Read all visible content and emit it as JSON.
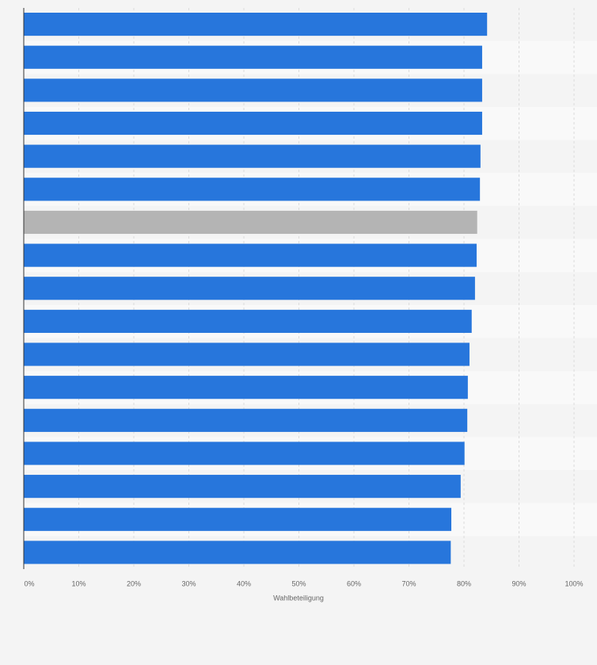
{
  "chart_data": {
    "type": "bar",
    "orientation": "horizontal",
    "xlabel": "Wahlbeteiligung",
    "categories": [
      null,
      null,
      null,
      null,
      null,
      null,
      null,
      null,
      null,
      null,
      null,
      null,
      null,
      null,
      null,
      null,
      null
    ],
    "values": [
      84.2,
      83.3,
      83.3,
      83.3,
      83.0,
      82.9,
      82.4,
      82.3,
      82.0,
      81.4,
      81.0,
      80.7,
      80.6,
      80.1,
      79.4,
      77.7,
      77.6
    ],
    "colors": [
      "#2776dc",
      "#2776dc",
      "#2776dc",
      "#2776dc",
      "#2776dc",
      "#2776dc",
      "#b4b4b4",
      "#2776dc",
      "#2776dc",
      "#2776dc",
      "#2776dc",
      "#2776dc",
      "#2776dc",
      "#2776dc",
      "#2776dc",
      "#2776dc",
      "#2776dc"
    ],
    "xlim": [
      0,
      100
    ],
    "xticks": [
      {
        "value": 0,
        "label": "0%"
      },
      {
        "value": 10,
        "label": "10%"
      },
      {
        "value": 20,
        "label": "20%"
      },
      {
        "value": 30,
        "label": "30%"
      },
      {
        "value": 40,
        "label": "40%"
      },
      {
        "value": 50,
        "label": "50%"
      },
      {
        "value": 60,
        "label": "60%"
      },
      {
        "value": 70,
        "label": "70%"
      },
      {
        "value": 80,
        "label": "80%"
      },
      {
        "value": 90,
        "label": "90%"
      },
      {
        "value": 100,
        "label": "100%"
      }
    ],
    "grid": true
  }
}
